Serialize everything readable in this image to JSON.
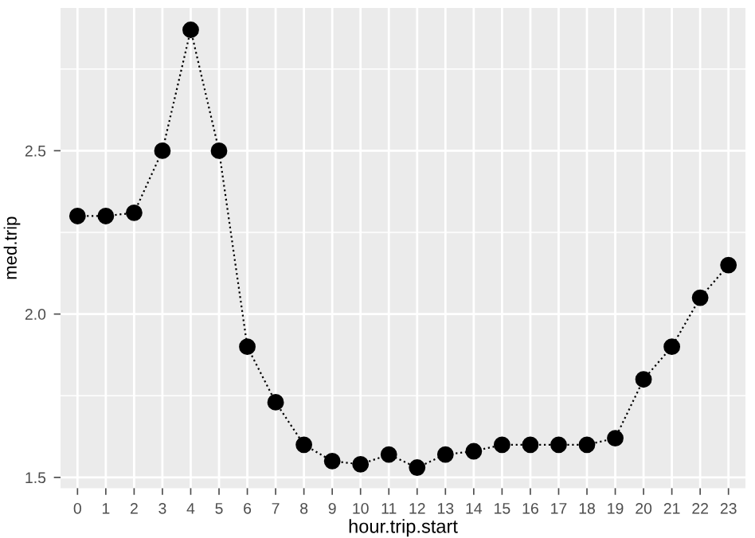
{
  "chart_data": {
    "type": "line",
    "xlabel": "hour.trip.start",
    "ylabel": "med.trip",
    "x": [
      0,
      1,
      2,
      3,
      4,
      5,
      6,
      7,
      8,
      9,
      10,
      11,
      12,
      13,
      14,
      15,
      16,
      17,
      18,
      19,
      20,
      21,
      22,
      23
    ],
    "series": [
      {
        "color": "#000000",
        "values": [
          2.3,
          2.3,
          2.31,
          2.5,
          2.87,
          2.5,
          1.9,
          1.73,
          1.6,
          1.55,
          1.54,
          1.57,
          1.53,
          1.57,
          1.58,
          1.6,
          1.6,
          1.6,
          1.6,
          1.62,
          1.8,
          1.9,
          2.05,
          2.15
        ]
      }
    ],
    "xlim": [
      -0.6,
      23.6
    ],
    "xticks": [
      0,
      1,
      2,
      3,
      4,
      5,
      6,
      7,
      8,
      9,
      10,
      11,
      12,
      13,
      14,
      15,
      16,
      17,
      18,
      19,
      20,
      21,
      22,
      23
    ],
    "ylim": [
      1.467,
      2.937
    ],
    "yticks": [
      {
        "value": 1.5,
        "label": "1.5"
      },
      {
        "value": 2.0,
        "label": "2.0"
      },
      {
        "value": 2.5,
        "label": "2.5"
      }
    ],
    "grid": true,
    "marker": "circle",
    "line_style": "dotted",
    "legend": false
  }
}
